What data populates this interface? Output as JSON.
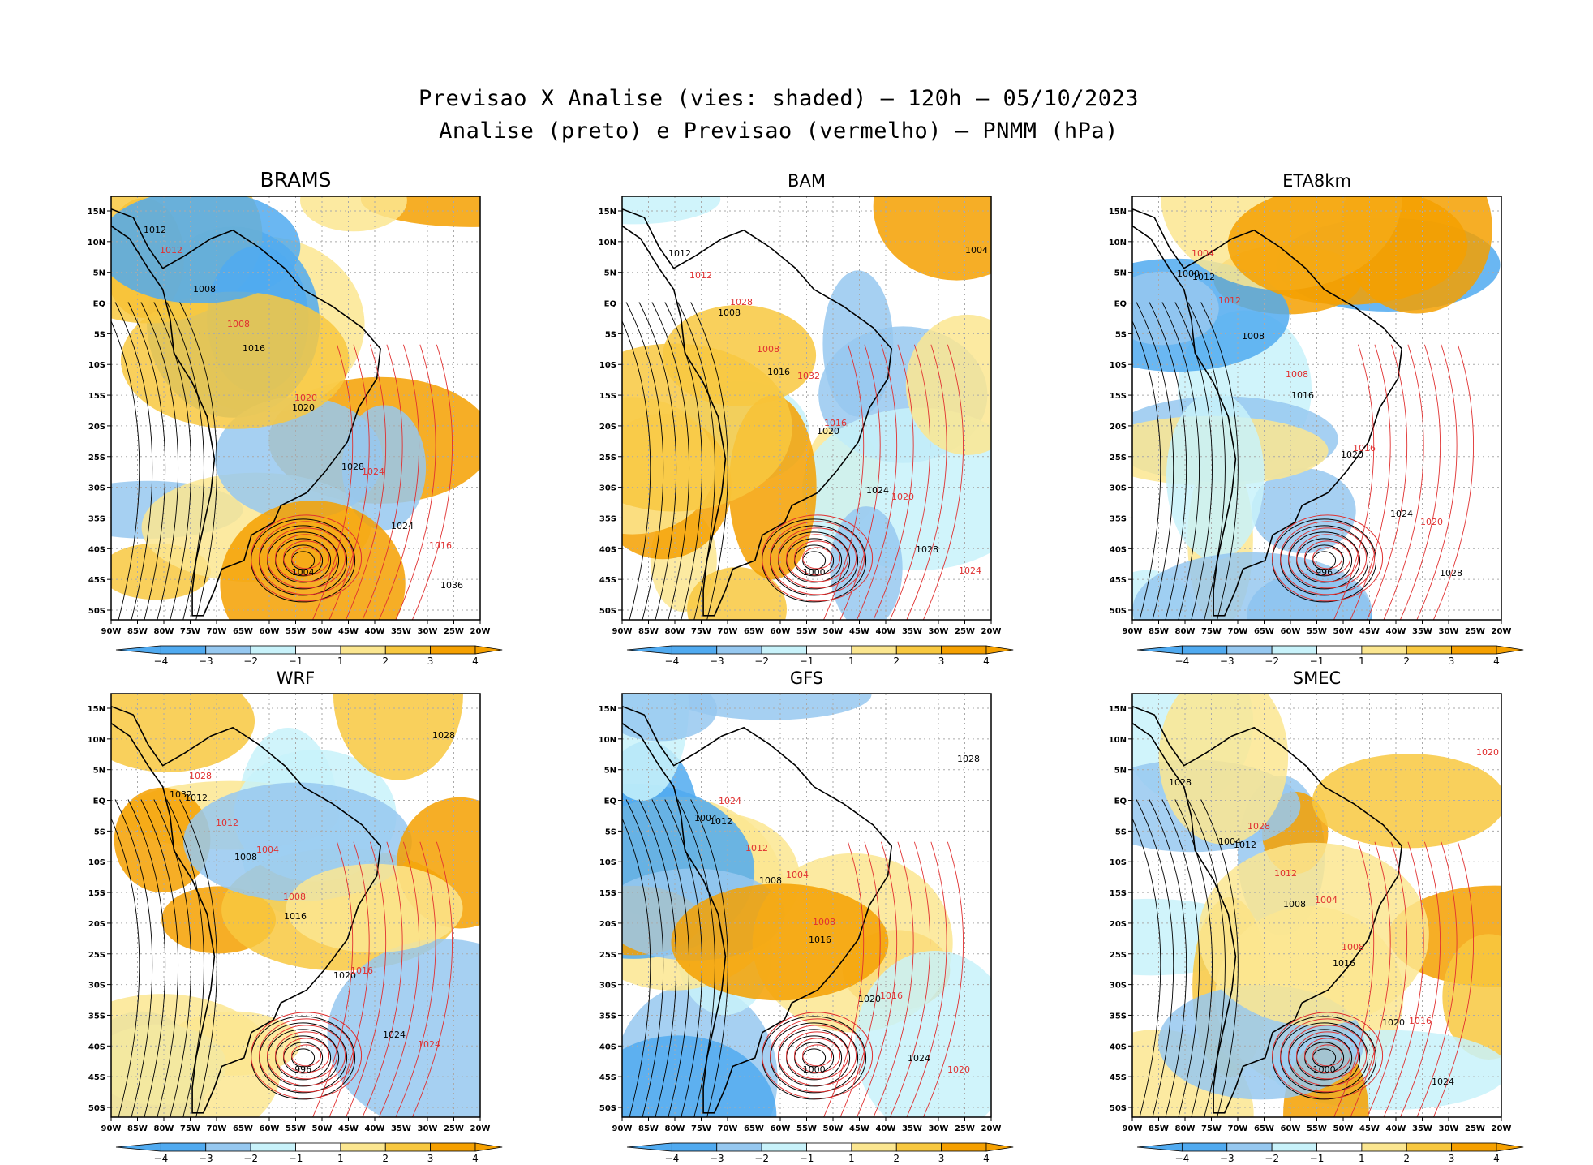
{
  "title": "Previsao X Analise (vies: shaded) — 120h — 05/10/2023",
  "subtitle": "Analise (preto) e Previsao (vermelho) — PNMM (hPa)",
  "colors": {
    "analysis_contour": "#000000",
    "forecast_contour": "#e03030",
    "bias_pos_strong": "#f5a000",
    "bias_pos_mid": "#f8c840",
    "bias_pos_weak": "#fbe690",
    "bias_neg_weak": "#c8f2fa",
    "bias_neg_mid": "#96c8f0",
    "bias_neg_strong": "#50aaf0",
    "gridline": "#aaaaaa"
  },
  "axes": {
    "lon_labels": [
      "90W",
      "85W",
      "80W",
      "75W",
      "70W",
      "65W",
      "60W",
      "55W",
      "50W",
      "45W",
      "40W",
      "35W",
      "30W",
      "25W",
      "20W"
    ],
    "lat_labels": [
      "15N",
      "10N",
      "5N",
      "EQ",
      "5S",
      "10S",
      "15S",
      "20S",
      "25S",
      "30S",
      "35S",
      "40S",
      "45S",
      "50S"
    ],
    "lon_range": [
      -90,
      -20
    ],
    "lat_range": [
      -53,
      18
    ]
  },
  "colorbar": {
    "labels": [
      "−4",
      "−3",
      "−2",
      "−1",
      "1",
      "2",
      "3",
      "4"
    ],
    "colors": [
      "#50aaf0",
      "#96c8f0",
      "#c8f2fa",
      "#ffffff",
      "#fbe690",
      "#f8c840",
      "#f5a000"
    ]
  },
  "panels": [
    {
      "id": "brams",
      "name": "BRAMS",
      "low_center": "1004",
      "black_labels": [
        "1012",
        "1008",
        "1016",
        "1020",
        "1028",
        "1024",
        "1036"
      ],
      "red_labels": [
        "1012",
        "1008",
        "1020",
        "1024",
        "1016"
      ]
    },
    {
      "id": "bam",
      "name": "BAM",
      "low_center": "1000",
      "black_labels": [
        "1012",
        "1008",
        "1016",
        "1020",
        "1024",
        "1028",
        "1004"
      ],
      "red_labels": [
        "1012",
        "1008",
        "1016",
        "1020",
        "1024",
        "1028",
        "1032"
      ]
    },
    {
      "id": "eta8km",
      "name": "ETA8km",
      "low_center": "996",
      "black_labels": [
        "1012",
        "1008",
        "1016",
        "1020",
        "1024",
        "1028",
        "1000"
      ],
      "red_labels": [
        "1012",
        "1008",
        "1016",
        "1020",
        "1004"
      ]
    },
    {
      "id": "wrf",
      "name": "WRF",
      "low_center": "996",
      "black_labels": [
        "1012",
        "1008",
        "1016",
        "1020",
        "1024",
        "1028",
        "1032"
      ],
      "red_labels": [
        "1012",
        "1008",
        "1016",
        "1024",
        "1028",
        "1004"
      ]
    },
    {
      "id": "gfs",
      "name": "GFS",
      "low_center": "1000",
      "black_labels": [
        "1012",
        "1008",
        "1016",
        "1020",
        "1024",
        "1028",
        "1004"
      ],
      "red_labels": [
        "1012",
        "1008",
        "1016",
        "1020",
        "1024",
        "1004"
      ]
    },
    {
      "id": "smec",
      "name": "SMEC",
      "low_center": "1000",
      "black_labels": [
        "1012",
        "1008",
        "1016",
        "1020",
        "1024",
        "1028",
        "1004"
      ],
      "red_labels": [
        "1012",
        "1008",
        "1016",
        "1020",
        "1028",
        "1004"
      ]
    }
  ]
}
